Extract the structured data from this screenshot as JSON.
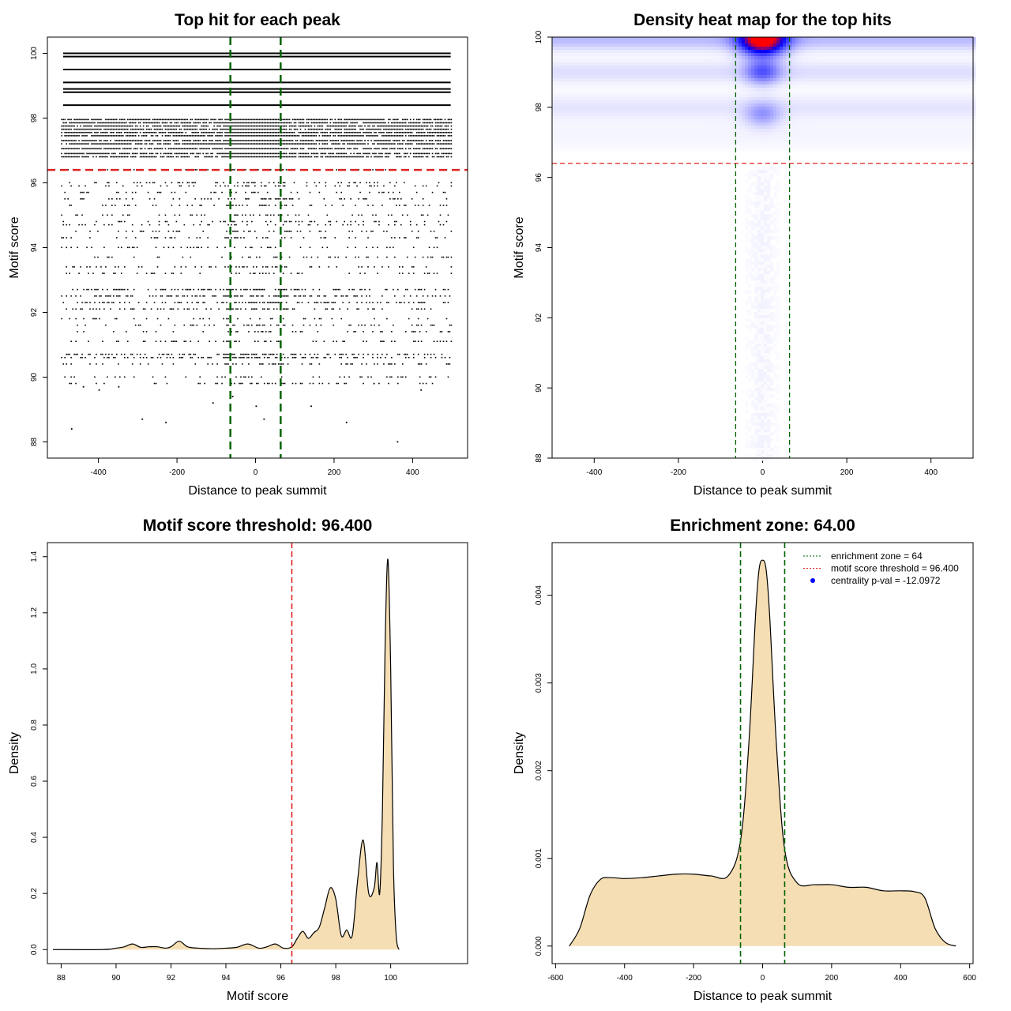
{
  "chart_data": [
    {
      "type": "scatter",
      "title": "Top hit for each peak",
      "xlabel": "Distance to peak summit",
      "ylabel": "Motif score",
      "xlim": [
        -530,
        540
      ],
      "ylim": [
        87.5,
        100.5
      ],
      "xticks": [
        -400,
        -200,
        0,
        200,
        400
      ],
      "yticks": [
        88,
        90,
        92,
        94,
        96,
        98,
        100
      ],
      "threshold_y": 96.4,
      "enrichment_zone": [
        -64,
        64
      ],
      "threshold_color": "#dd2222",
      "zone_color": "#006400",
      "dense_rows": [
        100,
        99.9,
        99.5,
        99.1,
        98.9,
        98.8,
        98.4
      ],
      "dotted_rows": [
        97.95,
        97.85,
        97.75,
        97.65,
        97.55,
        97.45,
        97.3,
        97.2,
        97.05,
        96.9,
        96.8,
        96.4,
        96.0,
        95.9,
        95.7,
        95.5,
        95.3,
        95.0,
        94.8,
        94.7,
        94.5,
        94.3,
        94.0,
        93.7,
        93.4,
        93.2,
        92.7,
        92.5,
        92.3,
        92.1,
        91.8,
        91.6,
        91.4,
        91.1,
        90.7,
        90.6,
        90.4,
        90.0,
        89.8
      ],
      "outliers": [
        [
          -470,
          88.4
        ],
        [
          -290,
          88.7
        ],
        [
          -230,
          88.6
        ],
        [
          -110,
          89.2
        ],
        [
          -60,
          89.4
        ],
        [
          0,
          89.1
        ],
        [
          20,
          88.7
        ],
        [
          140,
          89.1
        ],
        [
          230,
          88.6
        ],
        [
          360,
          88.0
        ],
        [
          -440,
          89.7
        ],
        [
          -400,
          89.6
        ],
        [
          -350,
          89.7
        ],
        [
          420,
          89.6
        ],
        [
          300,
          89.8
        ]
      ]
    },
    {
      "type": "heatmap",
      "title": "Density heat map for the top hits",
      "xlabel": "Distance to peak summit",
      "ylabel": "Motif score",
      "xlim": [
        -500,
        500
      ],
      "ylim": [
        88,
        100
      ],
      "xticks": [
        -400,
        -200,
        0,
        200,
        400
      ],
      "yticks": [
        88,
        90,
        92,
        94,
        96,
        98,
        100
      ],
      "threshold_y": 96.4,
      "enrichment_zone": [
        -64,
        64
      ],
      "palette": [
        "#ffffff",
        "#0000ff",
        "#ff0000"
      ],
      "hotspots": [
        {
          "x": 0,
          "y": 99.95,
          "sx": 38,
          "sy": 0.32,
          "w": 1.7
        },
        {
          "x": 0,
          "y": 99.0,
          "sx": 30,
          "sy": 0.25,
          "w": 0.55
        },
        {
          "x": 0,
          "y": 97.8,
          "sx": 30,
          "sy": 0.25,
          "w": 0.35
        }
      ],
      "bands": [
        {
          "y": 99.95,
          "sy": 0.22,
          "w": 0.28
        },
        {
          "y": 99.0,
          "sy": 0.22,
          "w": 0.13
        },
        {
          "y": 98.0,
          "sy": 0.25,
          "w": 0.1
        },
        {
          "y": 97.2,
          "sy": 0.3,
          "w": 0.04
        }
      ]
    },
    {
      "type": "area",
      "title": "Motif score threshold: 96.400",
      "xlabel": "Motif score",
      "ylabel": "Density",
      "xlim": [
        87.5,
        102.8
      ],
      "ylim": [
        -0.05,
        1.45
      ],
      "xticks": [
        88,
        90,
        92,
        94,
        96,
        98,
        100
      ],
      "yticks": [
        0.0,
        0.2,
        0.4,
        0.6,
        0.8,
        1.0,
        1.2,
        1.4
      ],
      "ytick_labels": [
        "0.0",
        "0.2",
        "0.4",
        "0.6",
        "0.8",
        "1.0",
        "1.2",
        "1.4"
      ],
      "threshold_x": 96.4,
      "fill_color": "#f5deb3",
      "x": [
        87.7,
        89.5,
        90.0,
        90.3,
        90.6,
        90.9,
        91.2,
        91.5,
        91.8,
        92.0,
        92.3,
        92.6,
        93.0,
        93.5,
        94.0,
        94.4,
        94.8,
        95.2,
        95.5,
        95.8,
        96.1,
        96.4,
        96.6,
        96.8,
        97.0,
        97.2,
        97.4,
        97.6,
        97.8,
        98.0,
        98.2,
        98.4,
        98.6,
        98.8,
        99.0,
        99.2,
        99.4,
        99.5,
        99.6,
        99.7,
        99.8,
        99.9,
        100.0,
        100.1,
        100.2,
        100.3
      ],
      "values": [
        0.0,
        0.0,
        0.005,
        0.01,
        0.02,
        0.008,
        0.01,
        0.01,
        0.005,
        0.01,
        0.03,
        0.01,
        0.005,
        0.003,
        0.005,
        0.008,
        0.02,
        0.005,
        0.01,
        0.02,
        0.005,
        0.01,
        0.04,
        0.065,
        0.04,
        0.06,
        0.08,
        0.15,
        0.22,
        0.18,
        0.05,
        0.07,
        0.05,
        0.25,
        0.39,
        0.2,
        0.22,
        0.31,
        0.2,
        0.5,
        1.1,
        1.39,
        1.0,
        0.3,
        0.05,
        0.0
      ]
    },
    {
      "type": "area",
      "title": "Enrichment zone: 64.00",
      "xlabel": "Distance to peak summit",
      "ylabel": "Density",
      "xlim": [
        -610,
        610
      ],
      "ylim": [
        -0.0002,
        0.0046
      ],
      "xticks": [
        -600,
        -400,
        -200,
        0,
        200,
        400,
        600
      ],
      "yticks": [
        0.0,
        0.001,
        0.002,
        0.003,
        0.004
      ],
      "ytick_labels": [
        "0.000",
        "0.001",
        "0.002",
        "0.003",
        "0.004"
      ],
      "enrichment_zone": [
        -64,
        64
      ],
      "fill_color": "#f5deb3",
      "x": [
        -560,
        -530,
        -500,
        -470,
        -440,
        -400,
        -350,
        -300,
        -250,
        -200,
        -150,
        -100,
        -64,
        -40,
        -20,
        -10,
        0,
        10,
        20,
        40,
        64,
        100,
        150,
        200,
        250,
        300,
        350,
        400,
        440,
        470,
        500,
        530,
        560
      ],
      "values": [
        0.0,
        0.0002,
        0.00058,
        0.00076,
        0.00078,
        0.00077,
        0.00078,
        0.0008,
        0.00082,
        0.00082,
        0.0008,
        0.0008,
        0.0012,
        0.0023,
        0.0038,
        0.0043,
        0.0044,
        0.0043,
        0.0038,
        0.0023,
        0.0011,
        0.00072,
        0.0007,
        0.0007,
        0.00067,
        0.00067,
        0.00063,
        0.00063,
        0.00062,
        0.00055,
        0.0002,
        4e-05,
        0.0
      ],
      "legend": [
        {
          "label": "enrichment zone = 64",
          "color": "#006400",
          "style": "dotted-line"
        },
        {
          "label": "motif score threshold = 96.400",
          "color": "#dd2222",
          "style": "dotted-line"
        },
        {
          "label": "centrality p-val = -12.0972",
          "color": "#0000ff",
          "style": "point"
        }
      ],
      "legend_position": "top-right"
    }
  ]
}
